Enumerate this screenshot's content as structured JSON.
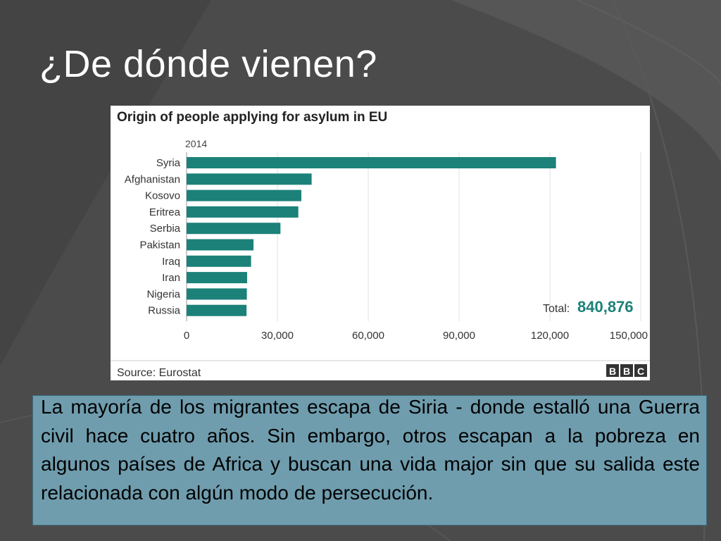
{
  "slide": {
    "title": "¿De dónde vienen?",
    "caption": "La mayoría de los migrantes escapa de Siria  - donde estalló una Guerra civil hace cuatro años. Sin embargo, otros escapan a la pobreza en algunos países de Africa y buscan una vida major sin que su salida este relacionada con algún modo de persecución."
  },
  "colors": {
    "background": "#4b4b4b",
    "bar": "#1b8179",
    "total_value": "#1b8179",
    "caption_box": "#6f9dae"
  },
  "chart_data": {
    "type": "bar",
    "orientation": "horizontal",
    "title": "Origin of people applying for asylum in EU",
    "subtitle": "2014",
    "categories": [
      "Syria",
      "Afghanistan",
      "Kosovo",
      "Eritrea",
      "Serbia",
      "Pakistan",
      "Iraq",
      "Iran",
      "Nigeria",
      "Russia"
    ],
    "values": [
      122000,
      41300,
      37900,
      36900,
      31000,
      22100,
      21300,
      20000,
      19900,
      19800
    ],
    "xlim": [
      0,
      150000
    ],
    "xticks": [
      "0",
      "30,000",
      "60,000",
      "90,000",
      "120,000",
      "150,000"
    ],
    "grid": true,
    "total_label": "Total:",
    "total_value": "840,876",
    "source": "Source: Eurostat",
    "logo_letters": [
      "B",
      "B",
      "C"
    ]
  }
}
